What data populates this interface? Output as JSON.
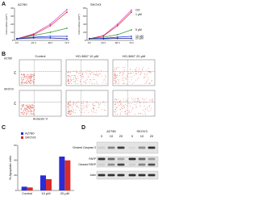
{
  "panels": {
    "a": {
      "label": "A",
      "series_names": [
        "Ctrl",
        "1 μM",
        "5 μM",
        "10 μM",
        "20 μM"
      ],
      "colors": [
        "#d23ad2",
        "#e02020",
        "#3a9a3a",
        "#2040e0",
        "#101080"
      ],
      "categories": [
        "0 h",
        "24 h",
        "48 h",
        "72 h"
      ],
      "ylabel": "Cell number (x10⁴)",
      "charts": [
        {
          "type": "line",
          "title": "A2780",
          "ylim": [
            0,
            40
          ],
          "yticks": [
            0,
            10,
            20,
            30,
            40
          ],
          "values": [
            [
              2,
              8,
              20,
              38
            ],
            [
              2,
              7,
              18,
              35
            ],
            [
              2,
              6,
              10,
              15
            ],
            [
              2,
              4,
              5,
              5
            ],
            [
              2,
              3,
              3,
              2
            ]
          ]
        },
        {
          "type": "line",
          "title": "SKOV3",
          "ylim": [
            0,
            80
          ],
          "yticks": [
            0,
            20,
            40,
            60,
            80
          ],
          "values": [
            [
              4,
              12,
              40,
              75
            ],
            [
              4,
              11,
              36,
              70
            ],
            [
              4,
              8,
              14,
              26
            ],
            [
              4,
              5,
              8,
              10
            ],
            [
              4,
              4,
              5,
              5
            ]
          ]
        }
      ]
    },
    "b": {
      "label": "B",
      "rows": [
        "A2780",
        "SKOV3"
      ],
      "columns": [
        "Control",
        "HO-3867 10 μM",
        "HO-3867 20 μM"
      ],
      "xlabel": "Annexin V",
      "ylabel": "PI"
    },
    "c": {
      "label": "C",
      "type": "bar",
      "categories": [
        "Control",
        "10 μM",
        "20 μM"
      ],
      "ylabel": "% Apoptotic cells",
      "ylim": [
        0,
        60
      ],
      "yticks": [
        0,
        20,
        40,
        60
      ],
      "series": [
        {
          "name": "A2780",
          "color": "#2b2bd8",
          "values": [
            5,
            20,
            45
          ]
        },
        {
          "name": "SKOV3",
          "color": "#d82b2b",
          "values": [
            4,
            15,
            40
          ]
        }
      ]
    },
    "d": {
      "label": "D",
      "cells": [
        "A2780",
        "SKOV3"
      ],
      "doses": [
        "0",
        "10",
        "20"
      ],
      "proteins": [
        "Cleaved Caspase-3",
        "PARP",
        "Cleaved PARP",
        "Actin"
      ]
    }
  }
}
